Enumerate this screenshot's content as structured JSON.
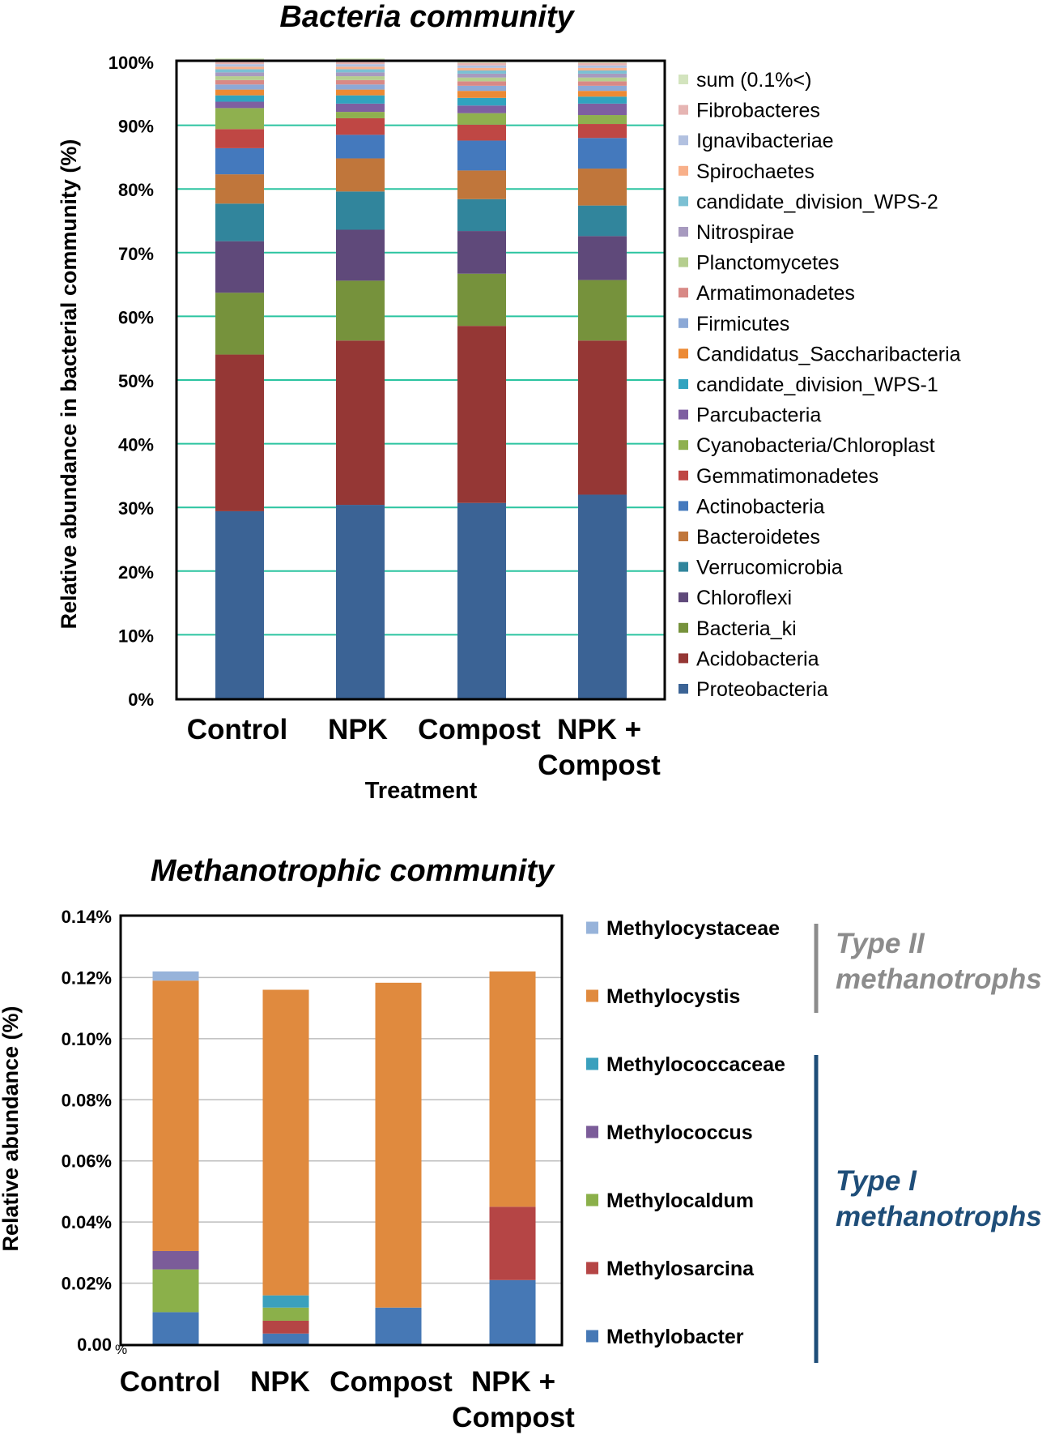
{
  "chart_data": [
    {
      "type": "bar",
      "stacked": true,
      "title": "Bacteria community",
      "xlabel": "Treatment",
      "ylabel": "Relative abundance in bacterial community (%)",
      "ylim": [
        0,
        100
      ],
      "yticks": [
        "0%",
        "10%",
        "20%",
        "30%",
        "40%",
        "50%",
        "60%",
        "70%",
        "80%",
        "90%",
        "100%"
      ],
      "grid": true,
      "legend_position": "right",
      "categories": [
        "Control",
        "NPK",
        "Compost",
        "NPK +\nCompost"
      ],
      "series": [
        {
          "name": "Proteobacteria",
          "color": "#3B6395",
          "values": [
            29.4,
            30.4,
            30.7,
            32.0
          ]
        },
        {
          "name": "Acidobacteria",
          "color": "#953735",
          "values": [
            24.6,
            25.8,
            27.8,
            24.2
          ]
        },
        {
          "name": "Bacteria_ki",
          "color": "#76923C",
          "values": [
            9.7,
            9.4,
            8.2,
            9.5
          ]
        },
        {
          "name": "Chloroflexi",
          "color": "#5F497A",
          "values": [
            8.1,
            8.0,
            6.7,
            6.9
          ]
        },
        {
          "name": "Verrucomicrobia",
          "color": "#31859C",
          "values": [
            5.9,
            6.0,
            5.0,
            4.8
          ]
        },
        {
          "name": "Bacteroidetes",
          "color": "#C0763B",
          "values": [
            4.6,
            5.2,
            4.5,
            5.8
          ]
        },
        {
          "name": "Actinobacteria",
          "color": "#4479BD",
          "values": [
            4.1,
            3.7,
            4.7,
            4.8
          ]
        },
        {
          "name": "Gemmatimonadetes",
          "color": "#BF4744",
          "values": [
            3.0,
            2.6,
            2.5,
            2.2
          ]
        },
        {
          "name": "Cyanobacteria/Chloroplast",
          "color": "#8FB04F",
          "values": [
            3.3,
            1.0,
            1.8,
            1.4
          ]
        },
        {
          "name": "Parcubacteria",
          "color": "#7E5FA1",
          "values": [
            1.0,
            1.3,
            1.2,
            1.8
          ]
        },
        {
          "name": "candidate_division_WPS-1",
          "color": "#31A3BF",
          "values": [
            1.0,
            1.3,
            1.2,
            1.1
          ]
        },
        {
          "name": "Candidatus_Saccharibacteria",
          "color": "#EC8A35",
          "values": [
            0.9,
            0.9,
            1.1,
            0.9
          ]
        },
        {
          "name": "Firmicutes",
          "color": "#8CA9D6",
          "values": [
            0.8,
            0.8,
            0.8,
            0.8
          ]
        },
        {
          "name": "Armatimonadetes",
          "color": "#D88986",
          "values": [
            0.7,
            0.7,
            0.7,
            0.7
          ]
        },
        {
          "name": "Planctomycetes",
          "color": "#B5CE8F",
          "values": [
            0.6,
            0.6,
            0.6,
            0.6
          ]
        },
        {
          "name": "Nitrospirae",
          "color": "#A79ABF",
          "values": [
            0.6,
            0.6,
            0.6,
            0.6
          ]
        },
        {
          "name": "candidate_division_WPS-2",
          "color": "#7CC0D3",
          "values": [
            0.5,
            0.5,
            0.5,
            0.5
          ]
        },
        {
          "name": "Spirochaetes",
          "color": "#F8B08A",
          "values": [
            0.4,
            0.4,
            0.4,
            0.4
          ]
        },
        {
          "name": "Ignavibacteriae",
          "color": "#B2C1E0",
          "values": [
            0.4,
            0.4,
            0.4,
            0.4
          ]
        },
        {
          "name": "Fibrobacteres",
          "color": "#E6B5B3",
          "values": [
            0.4,
            0.4,
            0.4,
            0.4
          ]
        },
        {
          "name": "sum (0.1%<)",
          "color": "#D3E4BE",
          "values": [
            0.5,
            0.5,
            0.5,
            0.5
          ]
        }
      ]
    },
    {
      "type": "bar",
      "stacked": true,
      "title": "Methanotrophic community",
      "ylabel": "Relative abundance (%)",
      "ylim": [
        0,
        0.14
      ],
      "yticks": [
        "0.00",
        "0.02%",
        "0.04%",
        "0.06%",
        "0.08%",
        "0.10%",
        "0.12%",
        "0.14%"
      ],
      "zero_suffix": "%",
      "grid": true,
      "legend_position": "right",
      "categories": [
        "Control",
        "NPK",
        "Compost",
        "NPK +\nCompost"
      ],
      "series": [
        {
          "name": "Methylobacter",
          "color": "#4678B5",
          "values": [
            0.0105,
            0.0035,
            0.012,
            0.021
          ]
        },
        {
          "name": "Methylosarcina",
          "color": "#B54545",
          "values": [
            0.0,
            0.0042,
            0.0,
            0.024
          ]
        },
        {
          "name": "Methylocaldum",
          "color": "#8BB04A",
          "values": [
            0.014,
            0.0043,
            0.0,
            0.0
          ]
        },
        {
          "name": "Methylococcus",
          "color": "#7B5C99",
          "values": [
            0.006,
            0.0,
            0.0,
            0.0
          ]
        },
        {
          "name": "Methylococcaceae",
          "color": "#3AA0BD",
          "values": [
            0.0,
            0.004,
            0.0,
            0.0
          ]
        },
        {
          "name": "Methylocystis",
          "color": "#E08A3E",
          "values": [
            0.0885,
            0.1,
            0.1063,
            0.077
          ]
        },
        {
          "name": "Methylocystaceae",
          "color": "#97B3DA",
          "values": [
            0.003,
            0.0,
            0.0,
            0.0
          ]
        }
      ],
      "groups": [
        {
          "label": "Type II\nmethanotrophs",
          "color": "#8C8C8C",
          "members": [
            "Methylocystaceae",
            "Methylocystis"
          ]
        },
        {
          "label": "Type I\nmethanotrophs",
          "color": "#1F4E79",
          "members": [
            "Methylococcaceae",
            "Methylococcus",
            "Methylocaldum",
            "Methylosarcina",
            "Methylobacter"
          ]
        }
      ]
    }
  ]
}
